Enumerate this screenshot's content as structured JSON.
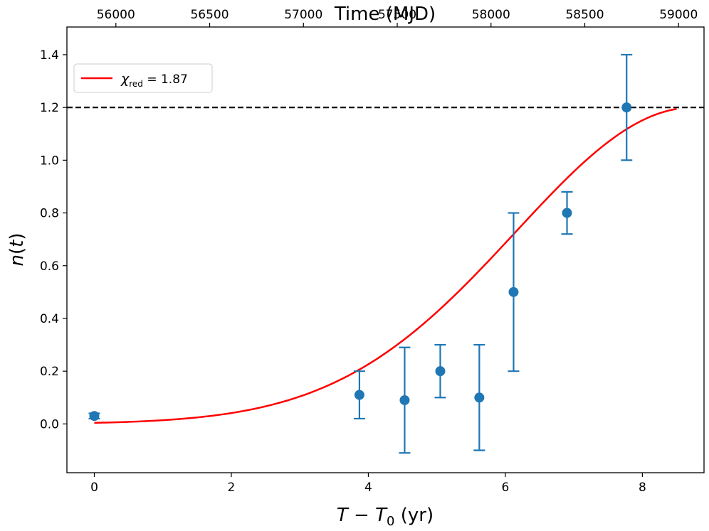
{
  "chart_data": {
    "type": "scatter",
    "title": "",
    "xlabel": "T − T₀ (yr)",
    "ylabel": "n(t)",
    "top_xlabel": "Time (MJD)",
    "xlim": [
      -0.4,
      8.9
    ],
    "ylim": [
      -0.185,
      1.505
    ],
    "x_ticks": [
      0,
      2,
      4,
      6,
      8
    ],
    "x_tick_labels": [
      "0",
      "2",
      "4",
      "6",
      "8"
    ],
    "y_ticks": [
      0.0,
      0.2,
      0.4,
      0.6,
      0.8,
      1.0,
      1.2,
      1.4
    ],
    "y_tick_labels": [
      "0.0",
      "0.2",
      "0.4",
      "0.6",
      "0.8",
      "1.0",
      "1.2",
      "1.4"
    ],
    "top_axis": {
      "mjd_at_x0": 55885,
      "days_per_year": 365.25,
      "ticks": [
        56000,
        56500,
        57000,
        57500,
        58000,
        58500,
        59000
      ],
      "tick_labels": [
        "56000",
        "56500",
        "57000",
        "57500",
        "58000",
        "58500",
        "59000"
      ]
    },
    "points": [
      {
        "x": 0.0,
        "y": 0.03,
        "err": 0.01
      },
      {
        "x": 3.87,
        "y": 0.11,
        "err": 0.09
      },
      {
        "x": 4.53,
        "y": 0.09,
        "err": 0.2
      },
      {
        "x": 5.05,
        "y": 0.2,
        "err": 0.1
      },
      {
        "x": 5.62,
        "y": 0.1,
        "err": 0.2
      },
      {
        "x": 6.12,
        "y": 0.5,
        "err": 0.3
      },
      {
        "x": 6.9,
        "y": 0.8,
        "err": 0.08
      },
      {
        "x": 7.77,
        "y": 1.2,
        "err": 0.2
      }
    ],
    "fit": {
      "label": "χred = 1.87",
      "legend_symbol": "χ",
      "legend_subscript": "red",
      "legend_value": " = 1.87",
      "color": "#ff0000",
      "model": "saturating_gaussian",
      "asymptote": 1.2,
      "x_start": 0.0,
      "x_end": 8.5,
      "t_peak": 8.75,
      "sigma": 2.6
    },
    "reference_line": {
      "y": 1.2,
      "style": "dashed",
      "color": "#000000"
    },
    "point_color": "#1f77b4",
    "legend_position": "top-left"
  }
}
